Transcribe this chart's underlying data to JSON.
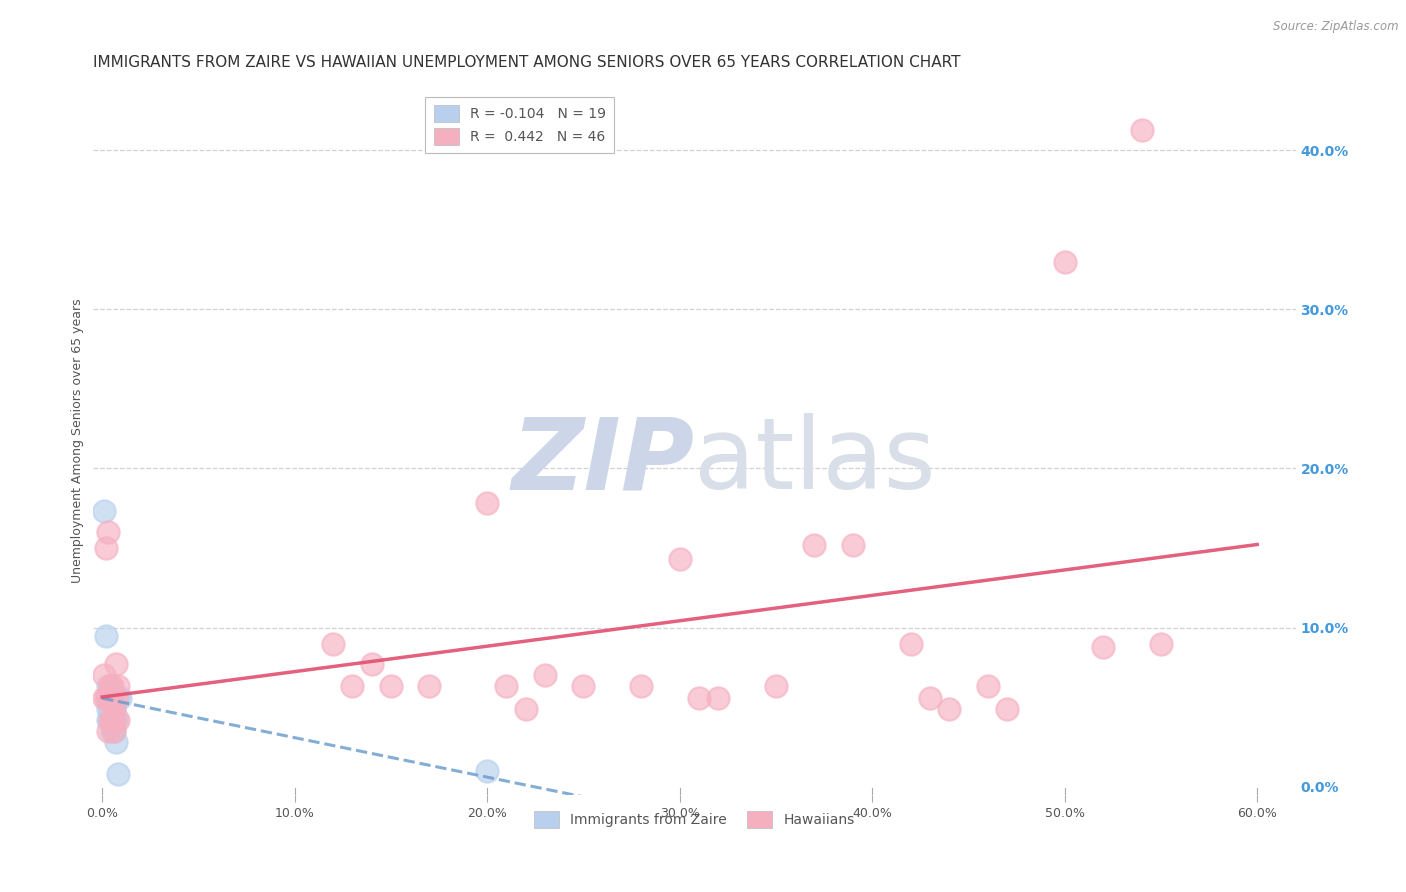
{
  "title": "IMMIGRANTS FROM ZAIRE VS HAWAIIAN UNEMPLOYMENT AMONG SENIORS OVER 65 YEARS CORRELATION CHART",
  "source": "Source: ZipAtlas.com",
  "ylabel": "Unemployment Among Seniors over 65 years",
  "xlim": [
    -0.005,
    0.62
  ],
  "ylim": [
    -0.005,
    0.44
  ],
  "xticks": [
    0.0,
    0.1,
    0.2,
    0.3,
    0.4,
    0.5,
    0.6
  ],
  "xticklabels": [
    "0.0%",
    "10.0%",
    "20.0%",
    "30.0%",
    "40.0%",
    "50.0%",
    "60.0%"
  ],
  "yticks_right": [
    0.0,
    0.1,
    0.2,
    0.3,
    0.4
  ],
  "ytick_right_labels": [
    "0.0%",
    "10.0%",
    "20.0%",
    "30.0%",
    "40.0%"
  ],
  "grid_yticks": [
    0.1,
    0.2,
    0.3,
    0.4
  ],
  "grid_color": "#cccccc",
  "background_color": "#ffffff",
  "legend_entries": [
    {
      "label": "R = -0.104   N = 19",
      "color": "#b8d0ed"
    },
    {
      "label": "R =  0.442   N = 46",
      "color": "#f5b0c0"
    }
  ],
  "legend_label1": "Immigrants from Zaire",
  "legend_label2": "Hawaiians",
  "zaire_color": "#b8d0ed",
  "hawaiian_color": "#f5b0c0",
  "zaire_trend_color": "#6699cc",
  "hawaiian_trend_color": "#e05070",
  "zaire_points": [
    [
      0.001,
      0.173
    ],
    [
      0.002,
      0.095
    ],
    [
      0.003,
      0.063
    ],
    [
      0.003,
      0.056
    ],
    [
      0.003,
      0.049
    ],
    [
      0.003,
      0.042
    ],
    [
      0.004,
      0.056
    ],
    [
      0.004,
      0.049
    ],
    [
      0.004,
      0.042
    ],
    [
      0.005,
      0.042
    ],
    [
      0.005,
      0.035
    ],
    [
      0.006,
      0.049
    ],
    [
      0.006,
      0.035
    ],
    [
      0.007,
      0.042
    ],
    [
      0.007,
      0.028
    ],
    [
      0.008,
      0.056
    ],
    [
      0.008,
      0.008
    ],
    [
      0.009,
      0.056
    ],
    [
      0.2,
      0.01
    ]
  ],
  "hawaiian_points": [
    [
      0.001,
      0.07
    ],
    [
      0.001,
      0.056
    ],
    [
      0.002,
      0.056
    ],
    [
      0.002,
      0.15
    ],
    [
      0.003,
      0.16
    ],
    [
      0.003,
      0.056
    ],
    [
      0.003,
      0.035
    ],
    [
      0.004,
      0.063
    ],
    [
      0.004,
      0.056
    ],
    [
      0.004,
      0.042
    ],
    [
      0.005,
      0.063
    ],
    [
      0.005,
      0.056
    ],
    [
      0.005,
      0.042
    ],
    [
      0.006,
      0.049
    ],
    [
      0.006,
      0.042
    ],
    [
      0.006,
      0.035
    ],
    [
      0.007,
      0.077
    ],
    [
      0.007,
      0.056
    ],
    [
      0.008,
      0.063
    ],
    [
      0.008,
      0.042
    ],
    [
      0.12,
      0.09
    ],
    [
      0.13,
      0.063
    ],
    [
      0.14,
      0.077
    ],
    [
      0.15,
      0.063
    ],
    [
      0.17,
      0.063
    ],
    [
      0.2,
      0.178
    ],
    [
      0.21,
      0.063
    ],
    [
      0.22,
      0.049
    ],
    [
      0.23,
      0.07
    ],
    [
      0.25,
      0.063
    ],
    [
      0.28,
      0.063
    ],
    [
      0.3,
      0.143
    ],
    [
      0.31,
      0.056
    ],
    [
      0.32,
      0.056
    ],
    [
      0.35,
      0.063
    ],
    [
      0.37,
      0.152
    ],
    [
      0.39,
      0.152
    ],
    [
      0.42,
      0.09
    ],
    [
      0.43,
      0.056
    ],
    [
      0.44,
      0.049
    ],
    [
      0.46,
      0.063
    ],
    [
      0.47,
      0.049
    ],
    [
      0.5,
      0.33
    ],
    [
      0.52,
      0.088
    ],
    [
      0.54,
      0.413
    ],
    [
      0.55,
      0.09
    ]
  ],
  "title_fontsize": 11,
  "axis_label_fontsize": 9,
  "tick_fontsize": 9,
  "legend_fontsize": 10,
  "right_tick_color": "#4499dd",
  "watermark_zip_color": "#d0d8e8",
  "watermark_atlas_color": "#c8d4e4"
}
